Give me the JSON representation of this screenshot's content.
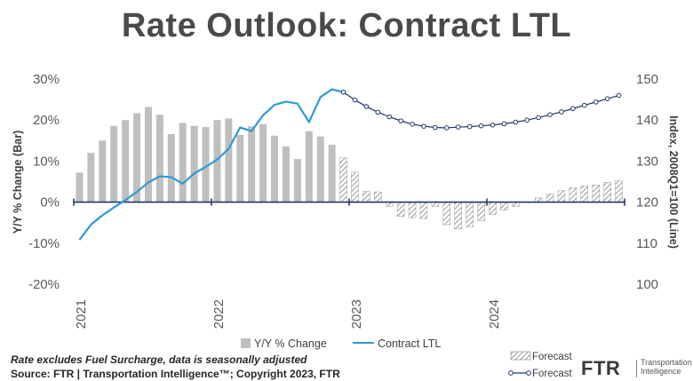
{
  "chart_data": {
    "type": "bar+line",
    "title": "Rate Outlook: Contract LTL",
    "y_left": {
      "label": "Y/Y % Change (Bar)",
      "min": -20,
      "max": 30,
      "ticks": [
        "30%",
        "20%",
        "10%",
        "0%",
        "-10%",
        "-20%"
      ]
    },
    "y_right": {
      "label": "Index, 2008Q1=100 (Line)",
      "min": 100,
      "max": 150,
      "ticks": [
        "150",
        "140",
        "130",
        "120",
        "110",
        "100"
      ]
    },
    "x_ticks": [
      "2021",
      "2022",
      "2023",
      "2024"
    ],
    "bar_series": {
      "name": "Y/Y % Change",
      "values": [
        7.2,
        12.0,
        15.0,
        18.6,
        20.0,
        21.7,
        23.2,
        21.3,
        16.6,
        19.3,
        18.6,
        18.3,
        20.0,
        20.4,
        16.4,
        18.5,
        19.0,
        16.2,
        13.6,
        10.5,
        17.3,
        16.0,
        14.0,
        10.8,
        7.3,
        2.6,
        2.5,
        -1.0,
        -3.5,
        -3.8,
        -4.0,
        -1.0,
        -5.5,
        -6.5,
        -6.0,
        -4.5,
        -3.0,
        -2.0,
        -1.0,
        0.0,
        1.0,
        2.0,
        2.8,
        3.5,
        4.0,
        4.2,
        4.8,
        5.2
      ],
      "forecast_from_index": 23
    },
    "line_series": {
      "name": "Contract LTL",
      "values": [
        110.8,
        114.5,
        116.8,
        118.7,
        120.5,
        122.5,
        124.8,
        126.3,
        126.1,
        124.5,
        127.0,
        128.6,
        130.4,
        133.0,
        138.2,
        137.3,
        141.2,
        143.7,
        144.5,
        144.0,
        139.5,
        145.6,
        147.5,
        146.8,
        144.9,
        143.3,
        141.9,
        140.8,
        139.8,
        139.0,
        138.5,
        138.2,
        138.1,
        138.3,
        138.4,
        138.6,
        138.8,
        139.1,
        139.5,
        140.0,
        140.6,
        141.3,
        142.0,
        142.8,
        143.6,
        144.4,
        145.2,
        146.0
      ],
      "forecast_from_index": 23
    },
    "legend": [
      "Y/Y % Change",
      "Contract LTL",
      "Forecast",
      "Forecast"
    ]
  },
  "notes": {
    "line1": "Rate excludes Fuel Surcharge, data is seasonally adjusted",
    "line2": "Source: FTR | Transportation Intelligence™; Copyright 2023, FTR"
  },
  "logo": {
    "name": "FTR",
    "tagline1": "Transportation",
    "tagline2": "Intelligence"
  },
  "colors": {
    "bar": "#bfbfbf",
    "line": "#2e9ad3",
    "axis": "#203864",
    "text": "#4a4a4a"
  }
}
